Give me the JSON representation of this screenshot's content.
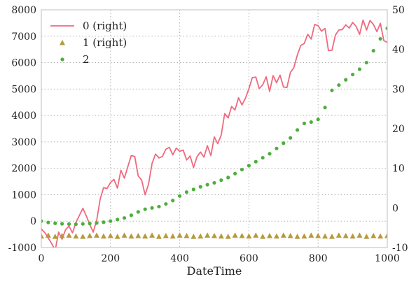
{
  "chart_data": {
    "type": "line",
    "xlabel": "DateTime",
    "x_range": [
      0,
      1000
    ],
    "x_ticks": [
      0,
      200,
      400,
      600,
      800,
      1000
    ],
    "y_left_range": [
      -1000,
      8000
    ],
    "y_left_ticks": [
      -1000,
      0,
      1000,
      2000,
      3000,
      4000,
      5000,
      6000,
      7000,
      8000
    ],
    "y_right_range": [
      -10,
      50
    ],
    "y_right_ticks": [
      -10,
      0,
      10,
      20,
      30,
      40,
      50
    ],
    "grid": true,
    "legend_position": "top-left",
    "series": [
      {
        "name": "0 (right)",
        "axis": "right",
        "kind": "line",
        "color": "#f0697f",
        "x": [
          0,
          10,
          20,
          30,
          40,
          50,
          60,
          70,
          80,
          90,
          100,
          110,
          120,
          130,
          140,
          150,
          160,
          170,
          180,
          190,
          200,
          210,
          220,
          230,
          240,
          250,
          260,
          270,
          280,
          290,
          300,
          310,
          320,
          330,
          340,
          350,
          360,
          370,
          380,
          390,
          400,
          410,
          420,
          430,
          440,
          450,
          460,
          470,
          480,
          490,
          500,
          510,
          520,
          530,
          540,
          550,
          560,
          570,
          580,
          590,
          600,
          610,
          620,
          630,
          640,
          650,
          660,
          670,
          680,
          690,
          700,
          710,
          720,
          730,
          740,
          750,
          760,
          770,
          780,
          790,
          800,
          810,
          820,
          830,
          840,
          850,
          860,
          870,
          880,
          890,
          900,
          910,
          920,
          930,
          940,
          950,
          960,
          970,
          980,
          990,
          1000
        ],
        "y": [
          -5.3,
          -6.2,
          -7.6,
          -9.0,
          -10.7,
          -6.1,
          -7.9,
          -5.5,
          -4.6,
          -6.3,
          -3.7,
          -1.9,
          -0.1,
          -2.0,
          -4.2,
          -6.1,
          -3.2,
          2.2,
          5.1,
          4.9,
          6.4,
          7.2,
          5.0,
          9.5,
          7.5,
          10.4,
          13.2,
          13.0,
          8.1,
          7.0,
          3.3,
          6.0,
          11.2,
          13.6,
          12.6,
          13.0,
          14.8,
          15.3,
          13.4,
          15.1,
          14.3,
          14.6,
          12.1,
          13.1,
          10.2,
          12.9,
          14.1,
          12.8,
          15.7,
          13.2,
          17.9,
          16.2,
          18.4,
          23.8,
          22.7,
          25.6,
          24.7,
          27.8,
          26.0,
          27.7,
          30.1,
          32.9,
          33.0,
          30.1,
          31.1,
          33.1,
          29.4,
          33.4,
          31.6,
          33.5,
          30.5,
          30.4,
          34.2,
          35.4,
          38.6,
          41.0,
          41.5,
          43.8,
          42.6,
          46.3,
          46.0,
          44.6,
          45.3,
          39.7,
          39.8,
          43.6,
          44.9,
          45.0,
          46.2,
          45.4,
          46.8,
          45.8,
          43.8,
          47.4,
          44.9,
          47.3,
          46.3,
          44.5,
          46.6,
          42.2,
          41.8
        ]
      },
      {
        "name": "1 (right)",
        "axis": "right",
        "kind": "marker-triangle",
        "color": "#b8993a",
        "x": [
          0,
          20,
          40,
          60,
          80,
          100,
          120,
          140,
          160,
          180,
          200,
          220,
          240,
          260,
          280,
          300,
          320,
          340,
          360,
          380,
          400,
          420,
          440,
          460,
          480,
          500,
          520,
          540,
          560,
          580,
          600,
          620,
          640,
          660,
          680,
          700,
          720,
          740,
          760,
          780,
          800,
          820,
          840,
          860,
          880,
          900,
          920,
          940,
          960,
          980,
          1000
        ],
        "y": [
          -7.1,
          -6.9,
          -7.2,
          -7.0,
          -6.9,
          -7.1,
          -7.2,
          -7.0,
          -6.9,
          -7.1,
          -7.0,
          -7.2,
          -6.9,
          -7.1,
          -7.0,
          -7.1,
          -6.9,
          -7.2,
          -7.0,
          -7.1,
          -6.9,
          -7.0,
          -7.2,
          -7.1,
          -6.9,
          -7.0,
          -7.1,
          -7.2,
          -6.9,
          -7.0,
          -7.1,
          -6.9,
          -7.2,
          -7.0,
          -7.1,
          -6.9,
          -7.0,
          -7.2,
          -7.1,
          -6.9,
          -7.0,
          -7.1,
          -7.2,
          -6.9,
          -7.0,
          -7.1,
          -6.9,
          -7.2,
          -7.0,
          -7.1,
          -7.0
        ]
      },
      {
        "name": "2",
        "axis": "left",
        "kind": "marker-circle",
        "color": "#4eae3d",
        "x": [
          0,
          20,
          40,
          60,
          80,
          100,
          120,
          140,
          160,
          180,
          200,
          220,
          240,
          260,
          280,
          300,
          320,
          340,
          360,
          380,
          400,
          420,
          440,
          460,
          480,
          500,
          520,
          540,
          560,
          580,
          600,
          620,
          640,
          660,
          680,
          700,
          720,
          740,
          760,
          780,
          800,
          820,
          840,
          860,
          880,
          900,
          920,
          940,
          960,
          980,
          1000
        ],
        "y": [
          0,
          -50,
          -80,
          -100,
          -110,
          -115,
          -105,
          -90,
          -70,
          -40,
          0,
          60,
          120,
          220,
          350,
          450,
          500,
          550,
          650,
          780,
          950,
          1100,
          1200,
          1300,
          1380,
          1450,
          1550,
          1650,
          1800,
          1950,
          2100,
          2250,
          2400,
          2550,
          2750,
          2950,
          3150,
          3450,
          3700,
          3750,
          3850,
          4300,
          4950,
          5150,
          5350,
          5550,
          5750,
          6000,
          6450,
          6900,
          7300
        ]
      }
    ]
  }
}
